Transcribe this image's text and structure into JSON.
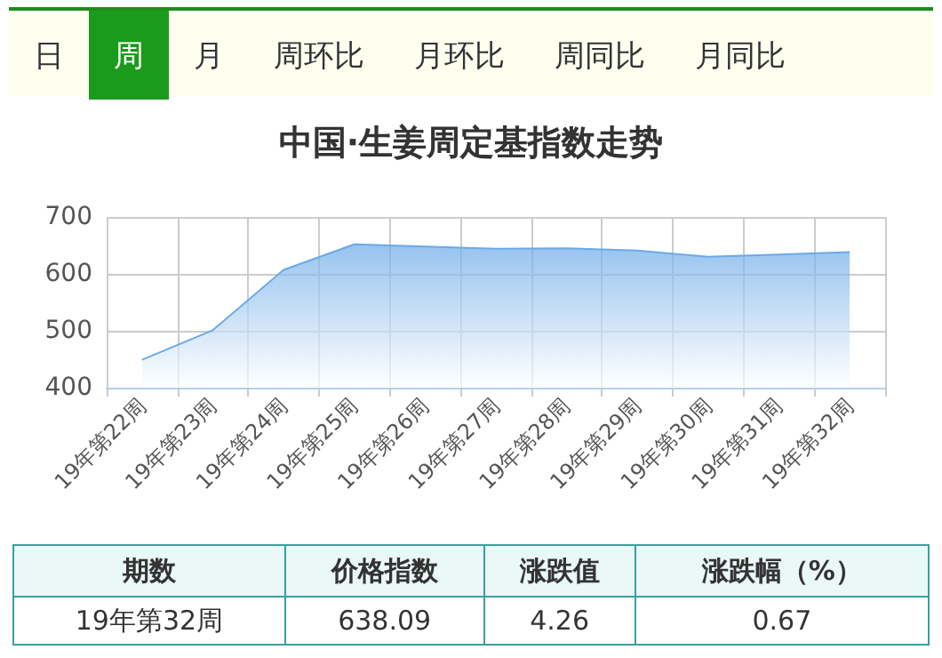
{
  "chart_data": {
    "type": "area",
    "title": "中国·生姜周定基指数走势",
    "categories": [
      "19年第22周",
      "19年第23周",
      "19年第24周",
      "19年第25周",
      "19年第26周",
      "19年第27周",
      "19年第28周",
      "19年第29周",
      "19年第30周",
      "19年第31周",
      "19年第32周"
    ],
    "series": [
      {
        "color": "#6aaae8",
        "values": [
          449,
          501,
          607,
          652,
          648,
          644,
          645,
          641,
          630,
          634,
          638.09
        ]
      }
    ],
    "ylim": [
      400,
      700
    ],
    "yticks": [
      400,
      500,
      600,
      700
    ],
    "grid": true,
    "marker": "none",
    "annotations": [
      "日",
      "周",
      "月",
      "周环比",
      "月环比",
      "周同比",
      "月同比",
      "期数",
      "价格指数",
      "涨跌值",
      "涨跌幅（%）",
      "19年第32周",
      "638.09",
      "4.26",
      "0.67"
    ]
  }
}
